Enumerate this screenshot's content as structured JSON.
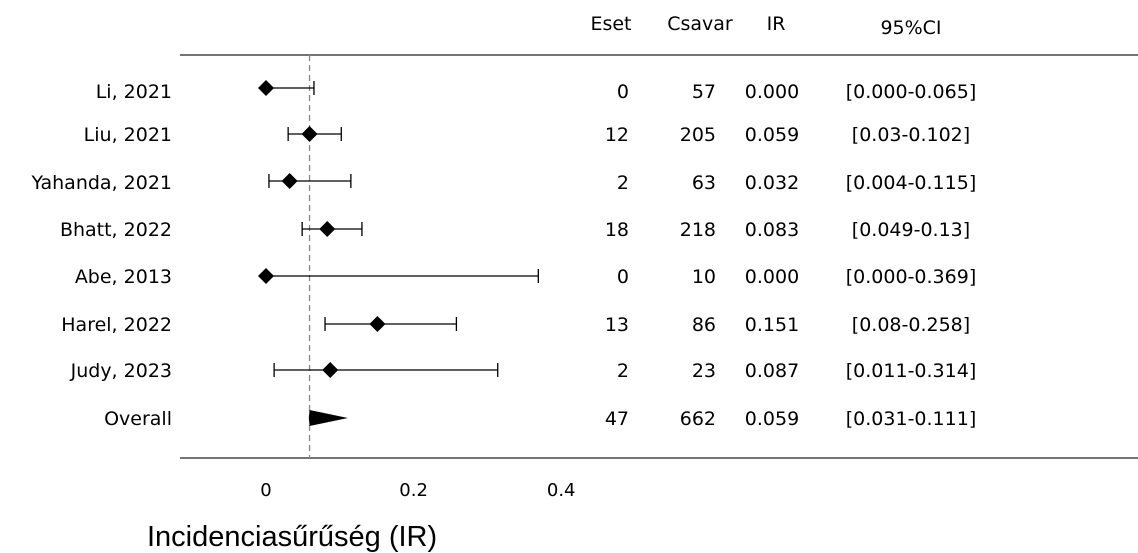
{
  "chart_data": {
    "type": "forest",
    "headers": [
      "Eset",
      "Csavar",
      "IR",
      "95%CI"
    ],
    "xlabel": "Incidenciasűrűség (IR)",
    "x_ticks": [
      "0",
      "0.2",
      "0.4"
    ],
    "x_tick_values": [
      0,
      0.2,
      0.4
    ],
    "reference_line": 0.059,
    "reference_line_style": "dashed",
    "xlim": [
      -0.12,
      1.18
    ],
    "studies": [
      {
        "label": "Li, 2021",
        "events": "0",
        "screws": "57",
        "ir_text": "0.000",
        "ci_text": "[0.000-0.065]",
        "ir": 0.0,
        "lo": 0.0,
        "hi": 0.065
      },
      {
        "label": "Liu, 2021",
        "events": "12",
        "screws": "205",
        "ir_text": "0.059",
        "ci_text": "[0.03-0.102]",
        "ir": 0.059,
        "lo": 0.03,
        "hi": 0.102
      },
      {
        "label": "Yahanda, 2021",
        "events": "2",
        "screws": "63",
        "ir_text": "0.032",
        "ci_text": "[0.004-0.115]",
        "ir": 0.032,
        "lo": 0.004,
        "hi": 0.115
      },
      {
        "label": "Bhatt, 2022",
        "events": "18",
        "screws": "218",
        "ir_text": "0.083",
        "ci_text": "[0.049-0.13]",
        "ir": 0.083,
        "lo": 0.049,
        "hi": 0.13
      },
      {
        "label": "Abe, 2013",
        "events": "0",
        "screws": "10",
        "ir_text": "0.000",
        "ci_text": "[0.000-0.369]",
        "ir": 0.0,
        "lo": 0.0,
        "hi": 0.369
      },
      {
        "label": "Harel, 2022",
        "events": "13",
        "screws": "86",
        "ir_text": "0.151",
        "ci_text": "[0.08-0.258]",
        "ir": 0.151,
        "lo": 0.08,
        "hi": 0.258
      },
      {
        "label": "Judy, 2023",
        "events": "2",
        "screws": "23",
        "ir_text": "0.087",
        "ci_text": "[0.011-0.314]",
        "ir": 0.087,
        "lo": 0.011,
        "hi": 0.314
      }
    ],
    "overall": {
      "label": "Overall",
      "events": "47",
      "screws": "662",
      "ir_text": "0.059",
      "ci_text": "[0.031-0.111]",
      "ir": 0.059,
      "lo": 0.031,
      "hi": 0.111
    }
  }
}
